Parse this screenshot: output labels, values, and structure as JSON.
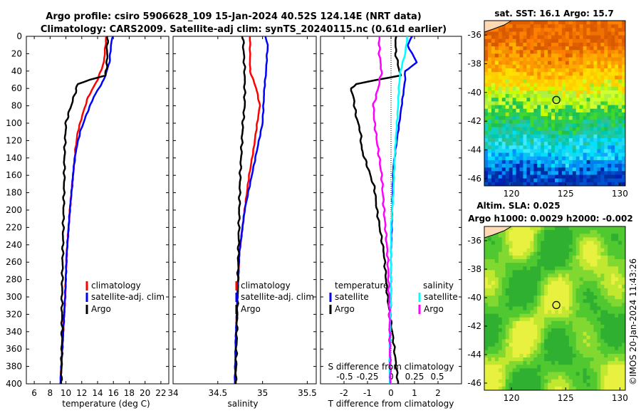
{
  "title_line1": "Argo profile: csiro 5906628_109 15-Jan-2024 40.52S 124.14E (NRT data)",
  "title_line2": "Climatology: CARS2009. Satellite-adj clim: synTS_20240115.nc (0.61d earlier)",
  "sst_title": "sat. SST: 16.1 Argo: 15.7",
  "sla_title1": "Altim. SLA: 0.025",
  "sla_title2": "Argo h1000: 0.0029 h2000: -0.002",
  "watermark": "©IMOS 20-Jan-2024 11:43:26",
  "colors": {
    "clim": "#ff0000",
    "sat": "#0000ff",
    "argo": "#000000",
    "sat_diff": "#00ffff",
    "argo_diff": "#ff00ff"
  },
  "chart_data": [
    {
      "type": "line",
      "name": "temperature",
      "xlabel": "temperature (deg C)",
      "ylabel": "",
      "xlim": [
        5,
        23
      ],
      "ylim": [
        400,
        0
      ],
      "xticks": [
        6,
        8,
        10,
        12,
        14,
        16,
        18,
        20,
        22
      ],
      "yticks": [
        0,
        20,
        40,
        60,
        80,
        100,
        120,
        140,
        160,
        180,
        200,
        220,
        240,
        260,
        280,
        300,
        320,
        340,
        360,
        380,
        400
      ],
      "legend": [
        "climatology",
        "satellite-adj. clim",
        "Argo"
      ],
      "series": [
        {
          "name": "climatology",
          "depth": [
            0,
            10,
            30,
            50,
            70,
            90,
            110,
            130,
            150,
            200,
            250,
            300,
            350,
            400
          ],
          "values": [
            15.1,
            15.0,
            14.8,
            14.0,
            12.8,
            12.1,
            11.5,
            11.2,
            11.0,
            10.5,
            10.1,
            9.9,
            9.6,
            9.3
          ]
        },
        {
          "name": "satellite-adj. clim",
          "depth": [
            0,
            10,
            30,
            50,
            70,
            90,
            110,
            130,
            150,
            200,
            250,
            300,
            350,
            400
          ],
          "values": [
            15.9,
            15.7,
            15.5,
            14.8,
            13.5,
            12.6,
            11.8,
            11.3,
            11.0,
            10.5,
            10.1,
            9.9,
            9.6,
            9.3
          ]
        },
        {
          "name": "Argo",
          "depth": [
            0,
            10,
            30,
            45,
            50,
            55,
            70,
            90,
            100,
            120,
            140,
            160,
            200,
            250,
            300,
            350,
            400
          ],
          "values": [
            15.3,
            15.2,
            15.2,
            15.0,
            13.0,
            11.5,
            11.0,
            10.3,
            10.0,
            9.9,
            9.8,
            9.8,
            9.7,
            9.6,
            9.5,
            9.5,
            9.4
          ]
        }
      ]
    },
    {
      "type": "line",
      "name": "salinity",
      "xlabel": "salinity",
      "xlim": [
        34,
        35.6
      ],
      "ylim": [
        400,
        0
      ],
      "xticks": [
        34,
        34.5,
        35,
        35.5
      ],
      "legend": [
        "climatology",
        "satellite-adj. clim",
        "Argo"
      ],
      "series": [
        {
          "name": "climatology",
          "depth": [
            0,
            20,
            40,
            60,
            80,
            100,
            130,
            160,
            200,
            250,
            300,
            350,
            400
          ],
          "values": [
            34.86,
            34.86,
            34.86,
            34.93,
            34.97,
            34.94,
            34.9,
            34.85,
            34.8,
            34.74,
            34.72,
            34.7,
            34.7
          ]
        },
        {
          "name": "satellite-adj. clim",
          "depth": [
            0,
            10,
            20,
            40,
            60,
            80,
            100,
            130,
            160,
            200,
            250,
            300,
            350,
            400
          ],
          "values": [
            35.03,
            35.06,
            35.05,
            35.04,
            35.02,
            35.01,
            35.0,
            34.94,
            34.88,
            34.8,
            34.74,
            34.72,
            34.7,
            34.69
          ]
        },
        {
          "name": "Argo",
          "depth": [
            0,
            20,
            40,
            60,
            80,
            100,
            120,
            140,
            160,
            200,
            250,
            300,
            350,
            400
          ],
          "values": [
            34.78,
            34.79,
            34.8,
            34.8,
            34.8,
            34.78,
            34.77,
            34.76,
            34.75,
            34.74,
            34.73,
            34.72,
            34.71,
            34.7
          ]
        }
      ]
    },
    {
      "type": "line",
      "name": "difference",
      "xlabel": "T difference from climatology",
      "xlabel_top": "S difference from climatology",
      "xlim": [
        -3,
        3
      ],
      "ylim": [
        400,
        0
      ],
      "xticks": [
        -2,
        -1,
        0,
        1,
        2
      ],
      "s_xtick_labels": [
        "-0.5",
        "-0.25",
        "0",
        "0.25",
        "0.5"
      ],
      "legend_temperature": [
        "temperature",
        "satellite",
        "Argo"
      ],
      "legend_salinity": [
        "salinity",
        "satellite",
        "Argo"
      ],
      "series": [
        {
          "name": "temperature satellite",
          "depth": [
            0,
            10,
            30,
            40,
            50,
            70,
            90,
            110,
            130,
            150,
            200,
            250,
            300,
            350,
            400
          ],
          "values": [
            0.9,
            0.7,
            1.1,
            0.6,
            0.6,
            0.5,
            0.4,
            0.3,
            0.2,
            0.1,
            0.05,
            0.0,
            0.0,
            -0.05,
            -0.05
          ]
        },
        {
          "name": "temperature Argo",
          "depth": [
            0,
            20,
            45,
            55,
            60,
            70,
            90,
            110,
            130,
            150,
            175,
            200,
            250,
            300,
            350,
            400
          ],
          "values": [
            0.2,
            0.2,
            0.4,
            -1.5,
            -1.7,
            -1.6,
            -1.5,
            -1.3,
            -1.25,
            -1.0,
            -0.7,
            -0.6,
            -0.3,
            -0.15,
            0.1,
            0.3
          ]
        },
        {
          "name": "salinity satellite",
          "depth": [
            0,
            20,
            40,
            60,
            80,
            100,
            140,
            180,
            220,
            260,
            300,
            350,
            400
          ],
          "values": [
            0.7,
            0.6,
            0.4,
            0.33,
            0.3,
            0.25,
            0.15,
            0.1,
            0.0,
            0.0,
            0.0,
            -0.05,
            -0.05
          ]
        },
        {
          "name": "salinity Argo",
          "depth": [
            0,
            20,
            40,
            60,
            80,
            100,
            120,
            140,
            160,
            200,
            250,
            300,
            350,
            400
          ],
          "values": [
            -0.5,
            -0.5,
            -0.4,
            -0.55,
            -0.75,
            -0.7,
            -0.6,
            -0.5,
            -0.4,
            -0.3,
            -0.15,
            -0.08,
            -0.05,
            -0.02
          ]
        }
      ]
    },
    {
      "type": "heatmap",
      "name": "sst-map",
      "title": "sat. SST: 16.1 Argo: 15.7",
      "xlim": [
        117.5,
        130.5
      ],
      "ylim": [
        -46.5,
        -35
      ],
      "xticks": [
        120,
        125,
        130
      ],
      "yticks": [
        -36,
        -38,
        -40,
        -42,
        -44,
        -46
      ],
      "marker": [
        124.14,
        -40.52
      ]
    },
    {
      "type": "heatmap",
      "name": "sla-map",
      "title": "Altim. SLA: 0.025",
      "xlim": [
        117.5,
        130.5
      ],
      "ylim": [
        -46.5,
        -35
      ],
      "xticks": [
        120,
        125,
        130
      ],
      "yticks": [
        -36,
        -38,
        -40,
        -42,
        -44,
        -46
      ],
      "marker": [
        124.14,
        -40.52
      ]
    }
  ]
}
